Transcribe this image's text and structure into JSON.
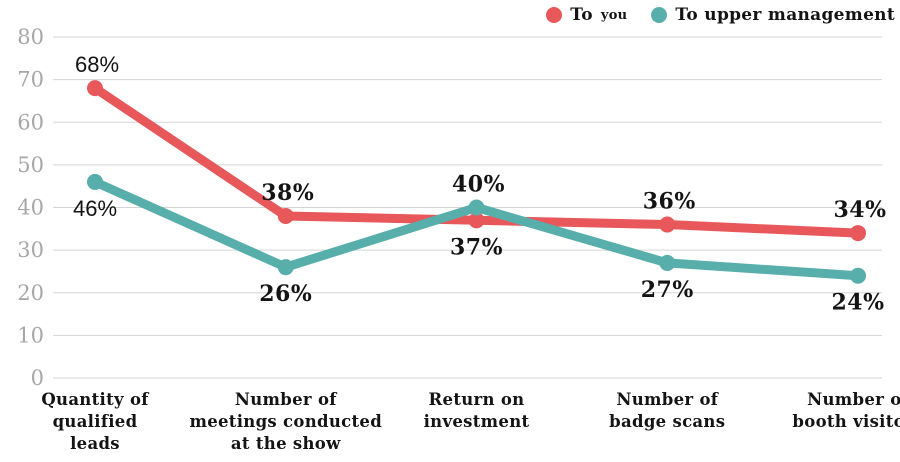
{
  "chart_data": {
    "type": "line",
    "title": "",
    "categories": [
      "Quantity of qualified leads",
      "Number of meetings conducted at the show",
      "Return on investment",
      "Number of badge scans",
      "Number of booth visitors"
    ],
    "category_lines": [
      [
        "Quantity of",
        "qualified",
        "leads"
      ],
      [
        "Number of",
        "meetings conducted",
        "at the show"
      ],
      [
        "Return on",
        "investment"
      ],
      [
        "Number of",
        "badge scans"
      ],
      [
        "Number of",
        "booth visitors"
      ]
    ],
    "series": [
      {
        "name": "To you",
        "color": "#e8575a",
        "values": [
          68,
          38,
          37,
          36,
          34
        ],
        "label_positions": [
          "above",
          "above",
          "below",
          "above",
          "above"
        ]
      },
      {
        "name": "To upper management",
        "color": "#58aeab",
        "values": [
          46,
          26,
          40,
          27,
          24
        ],
        "label_positions": [
          "below",
          "below",
          "above",
          "below",
          "below"
        ]
      }
    ],
    "value_suffix": "%",
    "ylim": [
      0,
      80
    ],
    "yticks": [
      0,
      10,
      20,
      30,
      40,
      50,
      60,
      70,
      80
    ],
    "grid": "horizontal",
    "legend_position": "top-right",
    "colors": {
      "grid": "#d5d5d5",
      "tick_label": "#a7a7a7",
      "label_text": "#141414",
      "background": "#ffffff"
    }
  },
  "legend": {
    "items": [
      {
        "label": "To",
        "label_small": "you"
      },
      {
        "label": "To upper management",
        "label_small": ""
      }
    ]
  }
}
